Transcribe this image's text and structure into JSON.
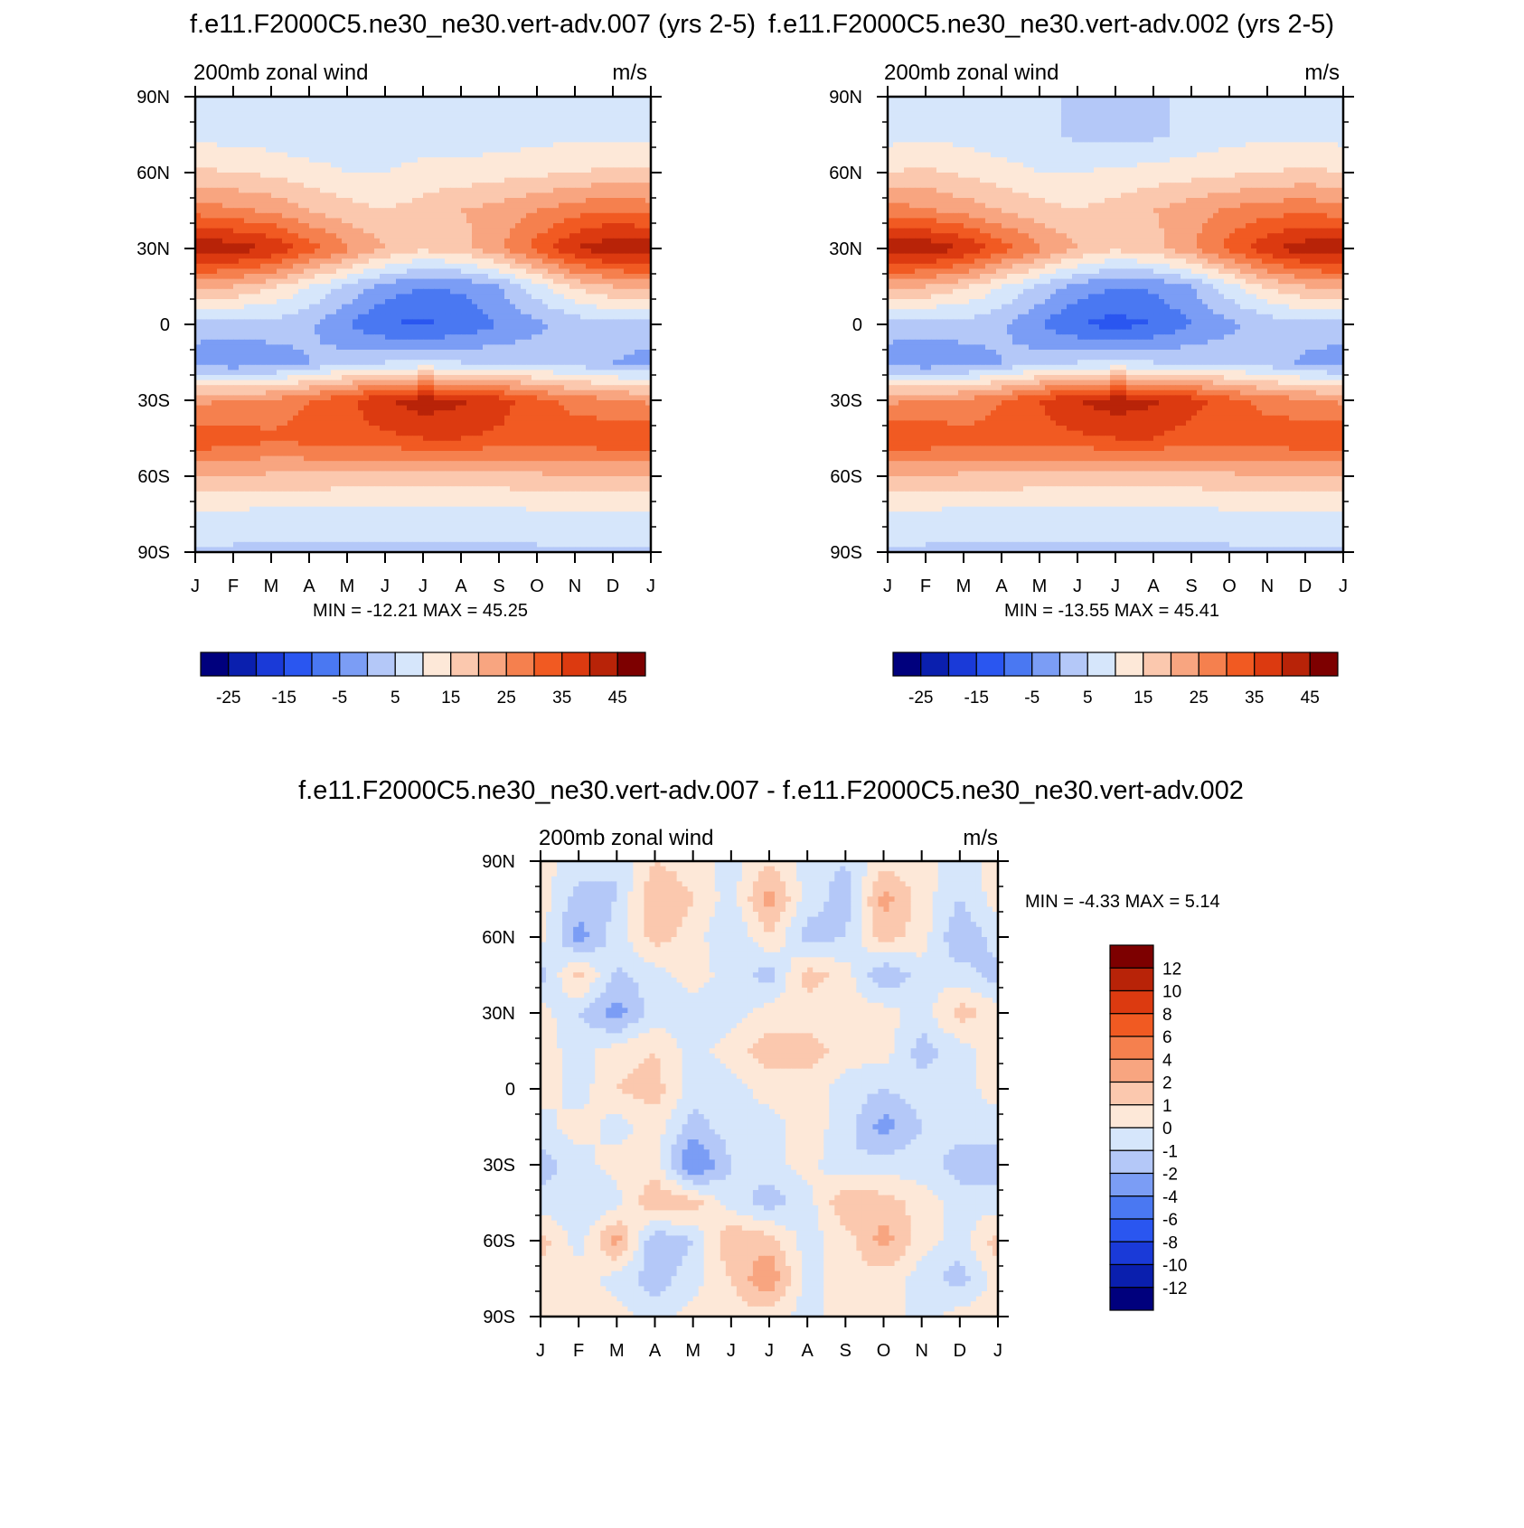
{
  "chart_data": [
    {
      "type": "heatmap",
      "title": "f.e11.F2000C5.ne30_ne30.vert-adv.007 (yrs 2-5)",
      "left_label": "200mb zonal wind",
      "right_label": "m/s",
      "stats": "MIN = -12.21 MAX =  45.25",
      "x_ticks": [
        "J",
        "F",
        "M",
        "A",
        "M",
        "J",
        "J",
        "A",
        "S",
        "O",
        "N",
        "D",
        "J"
      ],
      "y_ticks": [
        "90N",
        "60N",
        "30N",
        "0",
        "30S",
        "60S",
        "90S"
      ],
      "xlim": [
        0,
        12
      ],
      "ylim": [
        -90,
        90
      ],
      "colorbar": {
        "levels": [
          -30,
          -25,
          -20,
          -15,
          -10,
          -5,
          0,
          5,
          10,
          15,
          20,
          25,
          30,
          35,
          40,
          45
        ],
        "tick_labels": [
          "-25",
          "-15",
          "-5",
          "5",
          "15",
          "25",
          "35",
          "45"
        ],
        "colors": [
          "#00007d",
          "#0a1fae",
          "#1a3ad8",
          "#2a56f0",
          "#4a78f2",
          "#7b9df5",
          "#b4c8f8",
          "#d6e6fb",
          "#fde8d8",
          "#fbc8ae",
          "#f8a580",
          "#f5804e",
          "#f15a22",
          "#dc3a10",
          "#b82308",
          "#7d0000"
        ]
      },
      "bands": [
        {
          "lat": 90,
          "v": [
            5,
            5,
            5,
            5,
            5,
            5,
            5,
            5,
            5,
            5,
            5,
            5,
            5
          ]
        },
        {
          "lat": 75,
          "v": [
            8,
            8,
            7,
            6,
            6,
            6,
            7,
            7,
            7,
            8,
            9,
            9,
            8
          ]
        },
        {
          "lat": 60,
          "v": [
            16,
            15,
            14,
            12,
            10,
            10,
            12,
            12,
            13,
            14,
            15,
            16,
            16
          ]
        },
        {
          "lat": 45,
          "v": [
            28,
            26,
            24,
            20,
            17,
            15,
            17,
            20,
            22,
            25,
            28,
            30,
            28
          ]
        },
        {
          "lat": 30,
          "v": [
            44,
            43,
            40,
            33,
            26,
            20,
            16,
            18,
            24,
            32,
            40,
            44,
            44
          ]
        },
        {
          "lat": 15,
          "v": [
            22,
            20,
            16,
            10,
            4,
            -2,
            -5,
            -4,
            0,
            8,
            16,
            20,
            22
          ]
        },
        {
          "lat": 0,
          "v": [
            3,
            2,
            3,
            1,
            -5,
            -10,
            -11,
            -9,
            -5,
            -1,
            2,
            3,
            3
          ]
        },
        {
          "lat": -15,
          "v": [
            -3,
            -4,
            -3,
            0,
            3,
            5,
            5,
            5,
            4,
            3,
            2,
            0,
            -2
          ]
        },
        {
          "lat": -30,
          "v": [
            24,
            25,
            26,
            30,
            34,
            39,
            43,
            41,
            37,
            32,
            28,
            26,
            24
          ]
        },
        {
          "lat": -45,
          "v": [
            34,
            33,
            31,
            32,
            33,
            34,
            35,
            35,
            34,
            33,
            33,
            34,
            34
          ]
        },
        {
          "lat": -60,
          "v": [
            20,
            20,
            19,
            19,
            18,
            18,
            18,
            18,
            18,
            19,
            20,
            20,
            20
          ]
        },
        {
          "lat": -75,
          "v": [
            9,
            9,
            8,
            8,
            8,
            8,
            8,
            8,
            8,
            9,
            9,
            9,
            9
          ]
        },
        {
          "lat": -90,
          "v": [
            4,
            4,
            4,
            4,
            4,
            4,
            4,
            4,
            4,
            4,
            4,
            4,
            4
          ]
        }
      ]
    },
    {
      "type": "heatmap",
      "title": "f.e11.F2000C5.ne30_ne30.vert-adv.002 (yrs 2-5)",
      "left_label": "200mb zonal wind",
      "right_label": "m/s",
      "stats": "MIN = -13.55 MAX =  45.41",
      "x_ticks": [
        "J",
        "F",
        "M",
        "A",
        "M",
        "J",
        "J",
        "A",
        "S",
        "O",
        "N",
        "D",
        "J"
      ],
      "y_ticks": [
        "90N",
        "60N",
        "30N",
        "0",
        "30S",
        "60S",
        "90S"
      ],
      "xlim": [
        0,
        12
      ],
      "ylim": [
        -90,
        90
      ],
      "colorbar": {
        "levels": [
          -30,
          -25,
          -20,
          -15,
          -10,
          -5,
          0,
          5,
          10,
          15,
          20,
          25,
          30,
          35,
          40,
          45
        ],
        "tick_labels": [
          "-25",
          "-15",
          "-5",
          "5",
          "15",
          "25",
          "35",
          "45"
        ],
        "colors": [
          "#00007d",
          "#0a1fae",
          "#1a3ad8",
          "#2a56f0",
          "#4a78f2",
          "#7b9df5",
          "#b4c8f8",
          "#d6e6fb",
          "#fde8d8",
          "#fbc8ae",
          "#f8a580",
          "#f5804e",
          "#f15a22",
          "#dc3a10",
          "#b82308",
          "#7d0000"
        ]
      },
      "bands": [
        {
          "lat": 90,
          "v": [
            5,
            5,
            5,
            5,
            5,
            5,
            4,
            5,
            5,
            5,
            5,
            5,
            5
          ]
        },
        {
          "lat": 75,
          "v": [
            8,
            9,
            8,
            7,
            6,
            4,
            3,
            4,
            6,
            8,
            9,
            9,
            8
          ]
        },
        {
          "lat": 60,
          "v": [
            15,
            16,
            14,
            12,
            10,
            10,
            11,
            12,
            13,
            14,
            15,
            16,
            15
          ]
        },
        {
          "lat": 45,
          "v": [
            27,
            26,
            23,
            20,
            17,
            15,
            17,
            20,
            23,
            26,
            28,
            29,
            27
          ]
        },
        {
          "lat": 30,
          "v": [
            44,
            44,
            40,
            33,
            26,
            20,
            16,
            18,
            24,
            32,
            39,
            43,
            44
          ]
        },
        {
          "lat": 15,
          "v": [
            22,
            20,
            16,
            10,
            4,
            -2,
            -5,
            -4,
            0,
            8,
            16,
            20,
            22
          ]
        },
        {
          "lat": 0,
          "v": [
            3,
            2,
            3,
            1,
            -5,
            -10,
            -12,
            -10,
            -5,
            -1,
            2,
            3,
            3
          ]
        },
        {
          "lat": -15,
          "v": [
            -3,
            -4,
            -3,
            0,
            3,
            5,
            5,
            5,
            4,
            3,
            2,
            -1,
            -3
          ]
        },
        {
          "lat": -30,
          "v": [
            24,
            25,
            26,
            30,
            35,
            40,
            43,
            41,
            37,
            32,
            28,
            26,
            24
          ]
        },
        {
          "lat": -45,
          "v": [
            34,
            34,
            32,
            32,
            33,
            34,
            35,
            35,
            33,
            32,
            33,
            34,
            34
          ]
        },
        {
          "lat": -60,
          "v": [
            20,
            20,
            19,
            19,
            18,
            18,
            18,
            18,
            18,
            19,
            20,
            20,
            20
          ]
        },
        {
          "lat": -75,
          "v": [
            9,
            9,
            8,
            8,
            8,
            8,
            8,
            8,
            8,
            9,
            9,
            9,
            9
          ]
        },
        {
          "lat": -90,
          "v": [
            4,
            4,
            4,
            4,
            4,
            4,
            4,
            4,
            4,
            4,
            4,
            4,
            4
          ]
        }
      ]
    },
    {
      "type": "heatmap",
      "title": "f.e11.F2000C5.ne30_ne30.vert-adv.007 - f.e11.F2000C5.ne30_ne30.vert-adv.002",
      "left_label": "200mb zonal wind",
      "right_label": "m/s",
      "stats": "MIN =  -4.33 MAX =   5.14",
      "x_ticks": [
        "J",
        "F",
        "M",
        "A",
        "M",
        "J",
        "J",
        "A",
        "S",
        "O",
        "N",
        "D",
        "J"
      ],
      "y_ticks": [
        "90N",
        "60N",
        "30N",
        "0",
        "30S",
        "60S",
        "90S"
      ],
      "xlim": [
        0,
        12
      ],
      "ylim": [
        -90,
        90
      ],
      "colorbar": {
        "levels": [
          -14,
          -12,
          -10,
          -8,
          -6,
          -4,
          -2,
          -1,
          0,
          1,
          2,
          4,
          6,
          8,
          10,
          12,
          14
        ],
        "tick_labels": [
          "12",
          "10",
          "8",
          "6",
          "4",
          "2",
          "1",
          "0",
          "-1",
          "-2",
          "-4",
          "-6",
          "-8",
          "-10",
          "-12"
        ],
        "colors": [
          "#00007d",
          "#0a1fae",
          "#1a3ad8",
          "#2a56f0",
          "#4a78f2",
          "#7b9df5",
          "#b4c8f8",
          "#d6e6fb",
          "#fde8d8",
          "#fbc8ae",
          "#f8a580",
          "#f5804e",
          "#f15a22",
          "#dc3a10",
          "#b82308",
          "#7d0000"
        ]
      },
      "bands": [
        {
          "lat": 90,
          "v": [
            0.5,
            -0.5,
            -1,
            1,
            0.5,
            -0.5,
            1,
            -0.5,
            -1,
            0.5,
            0.5,
            -0.5,
            0.5
          ]
        },
        {
          "lat": 75,
          "v": [
            0.5,
            -1.5,
            -1,
            2,
            1,
            -0.5,
            2.5,
            -0.5,
            -1.5,
            2.5,
            0.5,
            -1,
            0.5
          ]
        },
        {
          "lat": 60,
          "v": [
            0.5,
            -2.5,
            -0.5,
            1.5,
            0.5,
            -1,
            1,
            -1.5,
            -1,
            1.5,
            0.5,
            -2,
            -0.5
          ]
        },
        {
          "lat": 45,
          "v": [
            -1.5,
            1.5,
            -1.2,
            -0.5,
            0.5,
            -0.5,
            -1.5,
            1.5,
            0.5,
            -2,
            -0.5,
            -0.5,
            -1.5
          ]
        },
        {
          "lat": 30,
          "v": [
            0.5,
            -1,
            -2.5,
            -0.5,
            -0.5,
            -0.5,
            0.5,
            0.5,
            0.5,
            0.5,
            -0.5,
            1.5,
            0.5
          ]
        },
        {
          "lat": 15,
          "v": [
            0.5,
            -0.5,
            0.5,
            1,
            -0.5,
            0.5,
            1.5,
            1.5,
            0.5,
            0.5,
            -1.5,
            -0.5,
            0.5
          ]
        },
        {
          "lat": 0,
          "v": [
            0.5,
            -0.5,
            1,
            1.5,
            -0.5,
            -0.5,
            0.5,
            0.5,
            -0.5,
            -1,
            -0.5,
            -0.5,
            0.5
          ]
        },
        {
          "lat": -15,
          "v": [
            -0.5,
            0.5,
            -0.5,
            0.5,
            -1.5,
            -0.5,
            -0.5,
            0.5,
            -0.5,
            -2.5,
            -1,
            -0.5,
            -0.5
          ]
        },
        {
          "lat": -30,
          "v": [
            -1.5,
            -0.5,
            0.5,
            0.5,
            -3.5,
            -1,
            -0.5,
            0.5,
            -1,
            -0.5,
            -0.5,
            -1.5,
            -1.5
          ]
        },
        {
          "lat": -45,
          "v": [
            -0.5,
            -1,
            -0.5,
            2,
            1.5,
            -0.5,
            -1.5,
            -0.5,
            2,
            1.5,
            0.5,
            -0.5,
            -0.5
          ]
        },
        {
          "lat": -60,
          "v": [
            1.5,
            -0.5,
            2.5,
            -2,
            -1,
            2,
            1.5,
            -0.5,
            0.5,
            2.5,
            0.5,
            -0.5,
            1.5
          ]
        },
        {
          "lat": -75,
          "v": [
            0.5,
            0.5,
            -0.5,
            -1.5,
            -0.5,
            1,
            3,
            -0.5,
            0.5,
            0.5,
            -0.5,
            -1.5,
            0.5
          ]
        },
        {
          "lat": -90,
          "v": [
            0.5,
            0.5,
            0.5,
            -0.5,
            0.5,
            0.5,
            0.5,
            -0.5,
            0.5,
            0.5,
            -0.5,
            0.5,
            0.5
          ]
        }
      ]
    }
  ]
}
